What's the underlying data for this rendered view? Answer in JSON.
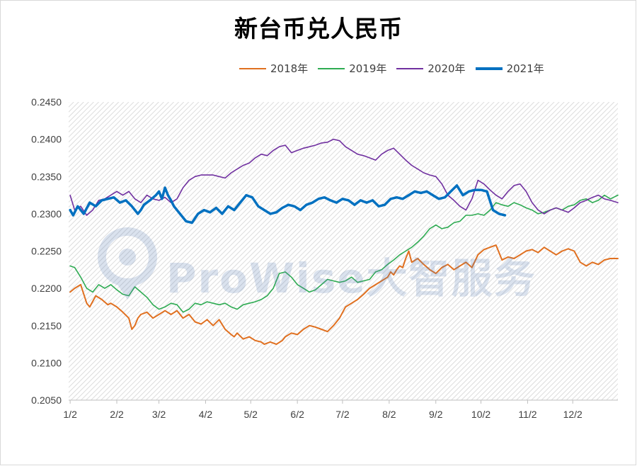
{
  "chart_data": {
    "type": "line",
    "title": "新台币兑人民币",
    "xlabel": "",
    "ylabel": "",
    "ylim": [
      0.205,
      0.245
    ],
    "yticks": [
      "0.2050",
      "0.2100",
      "0.2150",
      "0.2200",
      "0.2250",
      "0.2300",
      "0.2350",
      "0.2400",
      "0.2450"
    ],
    "xlim": [
      0,
      365
    ],
    "xticks": [
      {
        "label": "1/2",
        "day": 1
      },
      {
        "label": "2/2",
        "day": 32
      },
      {
        "label": "3/2",
        "day": 60
      },
      {
        "label": "4/2",
        "day": 91
      },
      {
        "label": "5/2",
        "day": 121
      },
      {
        "label": "6/2",
        "day": 152
      },
      {
        "label": "7/2",
        "day": 182
      },
      {
        "label": "8/2",
        "day": 213
      },
      {
        "label": "9/2",
        "day": 244
      },
      {
        "label": "10/2",
        "day": 274
      },
      {
        "label": "11/2",
        "day": 305
      },
      {
        "label": "12/2",
        "day": 335
      }
    ],
    "grid": false,
    "background_pattern": "diagonal-hatch",
    "legend_position": "top-right",
    "series": [
      {
        "name": "2018年",
        "color": "#E07020",
        "width": 2,
        "x": [
          1,
          4,
          8,
          12,
          14,
          18,
          22,
          26,
          28,
          32,
          36,
          40,
          42,
          44,
          46,
          48,
          52,
          56,
          60,
          64,
          68,
          72,
          76,
          80,
          84,
          88,
          90,
          92,
          96,
          100,
          104,
          108,
          110,
          112,
          116,
          120,
          124,
          128,
          130,
          134,
          138,
          142,
          144,
          148,
          152,
          156,
          160,
          164,
          168,
          172,
          176,
          180,
          184,
          188,
          192,
          196,
          200,
          204,
          208,
          212,
          214,
          216,
          218,
          220,
          222,
          224,
          226,
          228,
          232,
          236,
          240,
          244,
          248,
          252,
          256,
          260,
          264,
          268,
          272,
          276,
          280,
          284,
          288,
          292,
          296,
          300,
          304,
          308,
          312,
          316,
          320,
          324,
          328,
          332,
          336,
          340,
          344,
          348,
          352,
          356,
          360,
          365
        ],
        "y": [
          0.2195,
          0.22,
          0.2205,
          0.218,
          0.2175,
          0.219,
          0.2185,
          0.2178,
          0.218,
          0.2175,
          0.2168,
          0.216,
          0.2145,
          0.215,
          0.216,
          0.2165,
          0.2168,
          0.216,
          0.2165,
          0.217,
          0.2165,
          0.217,
          0.216,
          0.2165,
          0.2155,
          0.2152,
          0.2155,
          0.2158,
          0.215,
          0.2158,
          0.2145,
          0.2138,
          0.2135,
          0.214,
          0.2132,
          0.2135,
          0.213,
          0.2128,
          0.2125,
          0.2128,
          0.2125,
          0.213,
          0.2135,
          0.214,
          0.2138,
          0.2145,
          0.215,
          0.2148,
          0.2145,
          0.2142,
          0.215,
          0.216,
          0.2175,
          0.218,
          0.2185,
          0.2192,
          0.22,
          0.2205,
          0.221,
          0.2215,
          0.2222,
          0.2218,
          0.2225,
          0.223,
          0.2228,
          0.224,
          0.225,
          0.2235,
          0.224,
          0.2232,
          0.2225,
          0.222,
          0.2228,
          0.2232,
          0.2225,
          0.223,
          0.2235,
          0.2228,
          0.2245,
          0.2252,
          0.2255,
          0.2258,
          0.2238,
          0.2242,
          0.224,
          0.2245,
          0.225,
          0.2252,
          0.2248,
          0.2255,
          0.225,
          0.2245,
          0.225,
          0.2253,
          0.225,
          0.2235,
          0.223,
          0.2235,
          0.2232,
          0.2238,
          0.224,
          0.224
        ]
      },
      {
        "name": "2019年",
        "color": "#2EAB52",
        "width": 1.6,
        "x": [
          1,
          4,
          8,
          12,
          16,
          20,
          24,
          28,
          32,
          36,
          40,
          44,
          48,
          52,
          56,
          60,
          64,
          68,
          72,
          76,
          80,
          84,
          88,
          92,
          96,
          100,
          104,
          108,
          112,
          116,
          120,
          124,
          128,
          132,
          136,
          140,
          144,
          148,
          152,
          156,
          160,
          164,
          168,
          172,
          176,
          180,
          184,
          188,
          192,
          196,
          200,
          204,
          208,
          212,
          216,
          220,
          224,
          228,
          232,
          236,
          240,
          244,
          248,
          252,
          256,
          260,
          264,
          268,
          272,
          276,
          280,
          284,
          288,
          292,
          296,
          300,
          304,
          308,
          312,
          316,
          320,
          324,
          328,
          332,
          336,
          340,
          344,
          348,
          352,
          356,
          360,
          365
        ],
        "y": [
          0.223,
          0.2228,
          0.2215,
          0.22,
          0.2195,
          0.2205,
          0.22,
          0.2205,
          0.2198,
          0.2192,
          0.219,
          0.2202,
          0.2195,
          0.2188,
          0.2178,
          0.2172,
          0.2175,
          0.218,
          0.2178,
          0.2168,
          0.2172,
          0.218,
          0.2178,
          0.2182,
          0.218,
          0.2178,
          0.218,
          0.2175,
          0.2172,
          0.2178,
          0.218,
          0.2182,
          0.2185,
          0.219,
          0.22,
          0.222,
          0.2222,
          0.2215,
          0.2205,
          0.22,
          0.2195,
          0.2198,
          0.2205,
          0.2212,
          0.221,
          0.2208,
          0.221,
          0.2215,
          0.2208,
          0.221,
          0.2212,
          0.2222,
          0.2225,
          0.2232,
          0.2238,
          0.2245,
          0.225,
          0.2255,
          0.2262,
          0.227,
          0.228,
          0.2285,
          0.228,
          0.2282,
          0.2288,
          0.229,
          0.2298,
          0.2298,
          0.23,
          0.2298,
          0.2305,
          0.2315,
          0.2312,
          0.231,
          0.2315,
          0.2312,
          0.2308,
          0.2305,
          0.23,
          0.2302,
          0.2305,
          0.2308,
          0.2305,
          0.231,
          0.2312,
          0.2318,
          0.232,
          0.2315,
          0.2318,
          0.2325,
          0.232,
          0.2325
        ]
      },
      {
        "name": "2020年",
        "color": "#7030A0",
        "width": 1.6,
        "x": [
          1,
          4,
          8,
          12,
          16,
          20,
          24,
          28,
          32,
          36,
          40,
          44,
          48,
          52,
          56,
          60,
          64,
          68,
          72,
          76,
          80,
          84,
          88,
          92,
          96,
          100,
          104,
          108,
          112,
          116,
          120,
          124,
          128,
          132,
          136,
          140,
          144,
          148,
          152,
          156,
          160,
          164,
          168,
          172,
          176,
          180,
          184,
          188,
          192,
          196,
          200,
          204,
          208,
          212,
          216,
          220,
          224,
          228,
          232,
          236,
          240,
          244,
          248,
          252,
          256,
          260,
          264,
          268,
          272,
          276,
          280,
          284,
          288,
          292,
          296,
          300,
          304,
          308,
          312,
          316,
          320,
          324,
          328,
          332,
          336,
          340,
          344,
          348,
          352,
          356,
          360,
          365
        ],
        "y": [
          0.2325,
          0.2305,
          0.231,
          0.2298,
          0.2305,
          0.2318,
          0.232,
          0.2325,
          0.233,
          0.2325,
          0.233,
          0.232,
          0.2315,
          0.2325,
          0.232,
          0.2318,
          0.2322,
          0.2315,
          0.232,
          0.2335,
          0.2345,
          0.235,
          0.2352,
          0.2352,
          0.2352,
          0.235,
          0.2348,
          0.2355,
          0.236,
          0.2365,
          0.2368,
          0.2375,
          0.238,
          0.2378,
          0.2385,
          0.239,
          0.2392,
          0.2382,
          0.2385,
          0.2388,
          0.239,
          0.2392,
          0.2395,
          0.2396,
          0.24,
          0.2398,
          0.239,
          0.2385,
          0.238,
          0.2378,
          0.2375,
          0.2372,
          0.238,
          0.2385,
          0.2388,
          0.238,
          0.2372,
          0.2365,
          0.236,
          0.2355,
          0.2352,
          0.235,
          0.234,
          0.2325,
          0.2318,
          0.231,
          0.2305,
          0.232,
          0.2345,
          0.234,
          0.2332,
          0.2325,
          0.232,
          0.233,
          0.2338,
          0.234,
          0.233,
          0.2315,
          0.2305,
          0.23,
          0.2305,
          0.2308,
          0.2305,
          0.2302,
          0.2308,
          0.2315,
          0.2318,
          0.2322,
          0.2325,
          0.232,
          0.2318,
          0.2315
        ]
      },
      {
        "name": "2021年",
        "color": "#0070C0",
        "width": 3.5,
        "x": [
          1,
          3,
          6,
          10,
          14,
          18,
          22,
          26,
          30,
          34,
          38,
          42,
          46,
          48,
          50,
          54,
          58,
          60,
          62,
          64,
          66,
          68,
          70,
          74,
          78,
          82,
          86,
          90,
          94,
          98,
          102,
          106,
          110,
          114,
          118,
          122,
          126,
          130,
          134,
          138,
          142,
          146,
          150,
          154,
          158,
          162,
          166,
          170,
          174,
          178,
          182,
          186,
          190,
          194,
          198,
          202,
          206,
          210,
          214,
          218,
          222,
          226,
          230,
          234,
          238,
          242,
          246,
          250,
          254,
          258,
          262,
          266,
          270,
          274,
          278,
          282,
          286,
          290
        ],
        "y": [
          0.2305,
          0.2298,
          0.231,
          0.23,
          0.2315,
          0.231,
          0.2318,
          0.232,
          0.2322,
          0.2315,
          0.2318,
          0.231,
          0.23,
          0.2305,
          0.2312,
          0.2318,
          0.2325,
          0.233,
          0.232,
          0.2335,
          0.2325,
          0.2318,
          0.231,
          0.23,
          0.229,
          0.2288,
          0.23,
          0.2305,
          0.2302,
          0.2308,
          0.23,
          0.231,
          0.2305,
          0.2315,
          0.2325,
          0.2322,
          0.231,
          0.2305,
          0.23,
          0.2302,
          0.2308,
          0.2312,
          0.231,
          0.2305,
          0.2312,
          0.2315,
          0.232,
          0.2322,
          0.2318,
          0.2315,
          0.232,
          0.2318,
          0.2312,
          0.2318,
          0.2315,
          0.2318,
          0.231,
          0.2312,
          0.232,
          0.2322,
          0.232,
          0.2325,
          0.233,
          0.2328,
          0.233,
          0.2325,
          0.232,
          0.2322,
          0.233,
          0.2338,
          0.2325,
          0.233,
          0.2332,
          0.2332,
          0.233,
          0.2305,
          0.23,
          0.2298
        ]
      }
    ]
  },
  "watermark": {
    "text": "ProWise大智服务"
  }
}
